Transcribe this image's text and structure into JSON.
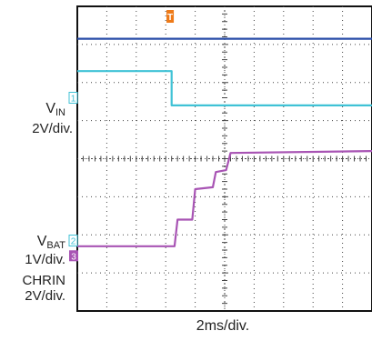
{
  "chart_data": {
    "type": "line",
    "title": "",
    "xlabel": "2ms/div.",
    "grid": true,
    "divisions": {
      "x": 10,
      "y": 8
    },
    "xlim": [
      0,
      10
    ],
    "ylim": [
      0,
      8
    ],
    "trigger_marker": {
      "label": "T",
      "color": "#ee7a18",
      "x": 3.15
    },
    "series": [
      {
        "color": "#2a4ea8",
        "points": [
          [
            0,
            7.15
          ],
          [
            10,
            7.15
          ]
        ]
      },
      {
        "color": "#40c2d6",
        "channel": "1",
        "channel_level": 5.6,
        "points": [
          [
            0,
            6.3
          ],
          [
            3.2,
            6.3
          ],
          [
            3.2,
            5.4
          ],
          [
            10,
            5.4
          ]
        ]
      },
      {
        "color": "#a854b4",
        "points": [
          [
            0,
            1.7
          ],
          [
            3.3,
            1.7
          ],
          [
            3.4,
            2.4
          ],
          [
            3.9,
            2.4
          ],
          [
            4.0,
            3.2
          ],
          [
            4.6,
            3.25
          ],
          [
            4.7,
            3.65
          ],
          [
            5.05,
            3.7
          ],
          [
            5.2,
            4.15
          ],
          [
            10,
            4.2
          ]
        ]
      }
    ],
    "channel_markers": [
      {
        "text": "1",
        "y": 5.6,
        "color": "#40c2d6"
      },
      {
        "text": "2",
        "y": 1.85,
        "color": "#40c2d6"
      },
      {
        "text": "3",
        "y": 1.45,
        "color": "#a854b4"
      }
    ],
    "labels": {
      "vin_main": "V",
      "vin_sub": "IN",
      "vin_scale": "2V/div.",
      "vbat_main": "V",
      "vbat_sub": "BAT",
      "vbat_scale": "1V/div.",
      "chrin_main": "CHRIN",
      "chrin_scale": "2V/div."
    }
  }
}
